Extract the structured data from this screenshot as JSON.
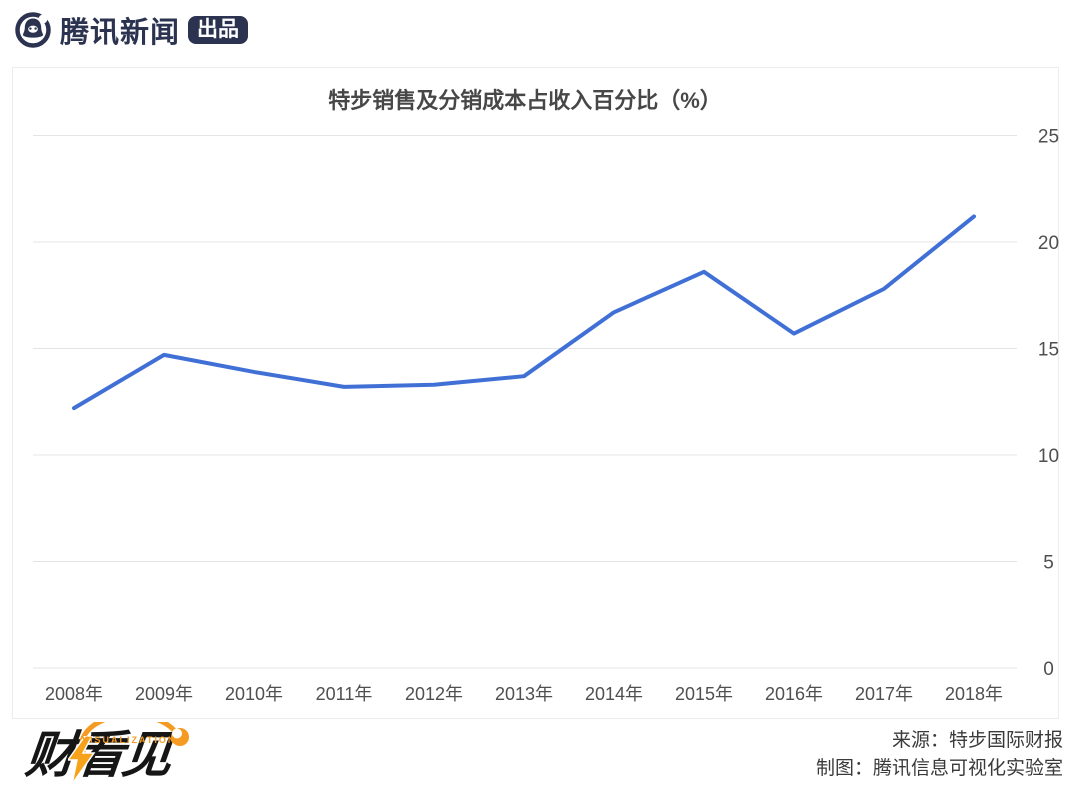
{
  "header": {
    "brand": "腾讯新闻",
    "badge": "出品",
    "brand_color": "#2b3350"
  },
  "chart_data": {
    "type": "line",
    "title": "特步销售及分销成本占收入百分比（%）",
    "categories": [
      "2008年",
      "2009年",
      "2010年",
      "2011年",
      "2012年",
      "2013年",
      "2014年",
      "2015年",
      "2016年",
      "2017年",
      "2018年"
    ],
    "values": [
      12.2,
      14.7,
      13.9,
      13.2,
      13.3,
      13.7,
      16.7,
      18.6,
      15.7,
      17.8,
      21.2
    ],
    "ylim": [
      0,
      25
    ],
    "y_ticks": [
      0,
      5,
      10,
      15,
      20,
      25
    ],
    "y_axis_side": "right",
    "grid": true,
    "legend": false,
    "line_color": "#4070d6"
  },
  "footer": {
    "logo_text": "财看见",
    "logo_subtext": "VISUALIZATION",
    "source_line": "来源：特步国际财报",
    "credit_line": "制图：腾讯信息可视化实验室",
    "accent_color": "#f59b22"
  }
}
